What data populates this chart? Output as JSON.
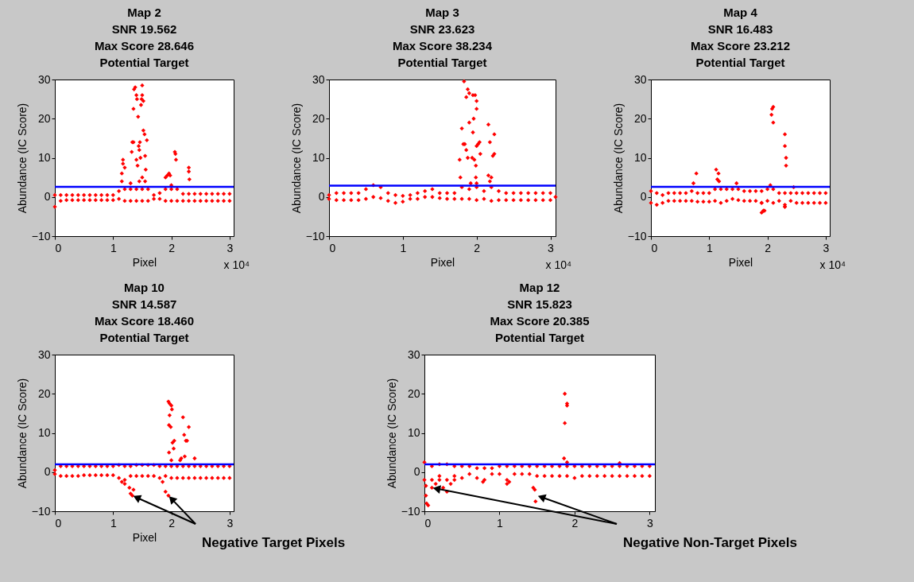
{
  "chart_data": [
    {
      "type": "scatter",
      "title": "Map 2\nSNR 19.562\nMax Score 28.646\nPotential Target",
      "xlabel": "Pixel",
      "ylabel": "Abundance (IC Score)",
      "color": "#ff0000",
      "marker": "diamond",
      "xlim": [
        0,
        3.07
      ],
      "ylim": [
        -10,
        30
      ],
      "xticks": [
        0,
        1,
        2,
        3
      ],
      "yticks": [
        -10,
        0,
        10,
        20,
        30
      ],
      "ref_lines": [
        {
          "axis": "y",
          "value": 2.6,
          "color": "#0000ff"
        }
      ],
      "annotations": [
        "x 10⁴"
      ],
      "x": [
        0,
        0,
        0.1,
        0.1,
        0.2,
        0.2,
        0.3,
        0.3,
        0.4,
        0.4,
        0.5,
        0.5,
        0.6,
        0.6,
        0.7,
        0.7,
        0.8,
        0.8,
        0.9,
        0.9,
        1,
        1,
        1.1,
        1.1,
        1.2,
        1.2,
        1.3,
        1.3,
        1.4,
        1.4,
        1.5,
        1.5,
        1.6,
        1.6,
        1.7,
        1.7,
        1.8,
        1.8,
        1.9,
        1.9,
        2,
        2,
        2.1,
        2.1,
        2.2,
        2.2,
        2.3,
        2.3,
        2.4,
        2.4,
        2.5,
        2.5,
        2.6,
        2.6,
        2.7,
        2.7,
        2.8,
        2.8,
        2.9,
        2.9,
        3,
        3,
        1.15,
        1.15,
        1.17,
        1.17,
        1.2,
        1.3,
        1.32,
        1.33,
        1.35,
        1.35,
        1.36,
        1.38,
        1.4,
        1.41,
        1.43,
        1.4,
        1.42,
        1.44,
        1.45,
        1.46,
        1.47,
        1.48,
        1.49,
        1.5,
        1.5,
        1.52,
        1.52,
        1.54,
        1.55,
        1.56,
        1.58,
        1.5,
        1.45,
        1.55,
        1.9,
        1.93,
        1.96,
        1.98,
        2,
        2.06,
        2.07,
        2.08,
        2.3,
        2.3,
        2.31
      ],
      "values": [
        0.5,
        -2.5,
        0.5,
        -1,
        0.5,
        -0.8,
        0.5,
        -0.8,
        0.5,
        -0.8,
        0.5,
        -0.8,
        0.5,
        -0.8,
        0.5,
        -0.8,
        0.5,
        -0.8,
        0.5,
        -0.8,
        0.5,
        -0.8,
        1.5,
        -0.5,
        2,
        -1,
        2,
        -1,
        2,
        -1,
        2,
        -1,
        2,
        -1,
        0.5,
        -0.5,
        1,
        -0.5,
        2,
        -1,
        2,
        -1,
        2,
        -1,
        0.8,
        -1,
        0.8,
        -1,
        0.8,
        -1,
        0.8,
        -1,
        0.8,
        -1,
        0.8,
        -1,
        0.8,
        -1,
        0.8,
        -1,
        0.8,
        -1,
        4,
        6,
        8.5,
        9.5,
        7.5,
        3.5,
        11.5,
        14,
        14,
        22.5,
        27.5,
        28,
        26,
        25,
        20.5,
        9.5,
        8,
        13,
        12,
        14,
        10,
        23.5,
        25,
        28.5,
        26,
        17,
        24.5,
        16,
        10.5,
        7,
        14.5,
        5,
        4,
        4,
        5,
        5.5,
        6,
        5.5,
        3,
        11.5,
        11,
        9.5,
        7.5,
        6.5,
        4.5
      ]
    },
    {
      "type": "scatter",
      "title": "Map 3\nSNR 23.623\nMax Score 38.234\nPotential Target",
      "xlabel": "Pixel",
      "ylabel": "Abundance (IC Score)",
      "color": "#ff0000",
      "marker": "diamond",
      "xlim": [
        0,
        3.07
      ],
      "ylim": [
        -10,
        30
      ],
      "xticks": [
        0,
        1,
        2,
        3
      ],
      "yticks": [
        -10,
        0,
        10,
        20,
        30
      ],
      "ref_lines": [
        {
          "axis": "y",
          "value": 2.9,
          "color": "#0000ff"
        }
      ],
      "annotations": [
        "x 10⁴"
      ],
      "x": [
        0,
        0,
        0.1,
        0.1,
        0.2,
        0.2,
        0.3,
        0.3,
        0.4,
        0.4,
        0.5,
        0.5,
        0.6,
        0.6,
        0.7,
        0.7,
        0.8,
        0.8,
        0.9,
        0.9,
        1,
        1,
        1.1,
        1.1,
        1.2,
        1.2,
        1.3,
        1.3,
        1.4,
        1.4,
        1.5,
        1.5,
        1.6,
        1.6,
        1.7,
        1.7,
        1.8,
        1.8,
        1.9,
        1.9,
        2,
        2,
        2.1,
        2.1,
        2.2,
        2.2,
        2.3,
        2.3,
        2.4,
        2.4,
        2.5,
        2.5,
        2.6,
        2.6,
        2.7,
        2.7,
        2.8,
        2.8,
        2.9,
        2.9,
        3,
        3,
        3.07,
        1.83,
        1.86,
        1.88,
        1.9,
        1.95,
        1.98,
        2,
        2,
        1.8,
        1.82,
        1.84,
        1.86,
        1.88,
        1.9,
        1.95,
        1.96,
        1.94,
        1.97,
        2,
        2.02,
        2.04,
        2.05,
        1.99,
        1.77,
        1.78,
        1.99,
        2,
        1.92,
        2.16,
        2.18,
        2.22,
        2.24,
        2.24,
        2.16,
        2.2,
        2.18
      ],
      "values": [
        0.5,
        -0.5,
        1,
        -0.8,
        1,
        -0.8,
        1,
        -0.8,
        1,
        -0.8,
        2,
        -0.5,
        3,
        0,
        2.5,
        -0.3,
        1,
        -1,
        0.5,
        -1.5,
        0.3,
        -1.2,
        0.5,
        -0.5,
        1,
        -0.5,
        1.5,
        0,
        2,
        0,
        1,
        -0.3,
        1,
        -0.5,
        1,
        -0.5,
        2.5,
        -0.5,
        2,
        -0.5,
        2.5,
        -0.8,
        1.5,
        -0.5,
        2.5,
        -1,
        1.5,
        -0.8,
        1,
        -0.8,
        1,
        -0.8,
        1,
        -0.8,
        1,
        -0.8,
        1,
        -0.8,
        1,
        -0.8,
        1,
        -0.8,
        0,
        29.5,
        25.5,
        27.5,
        26.5,
        26,
        26,
        24.5,
        22.5,
        17.5,
        13.5,
        13.5,
        12,
        10,
        19,
        16.5,
        20,
        10,
        9.5,
        13,
        13.5,
        14,
        11,
        8,
        9.5,
        5,
        5,
        3.5,
        3.5,
        18.5,
        14,
        10.5,
        11,
        16,
        5.5,
        5,
        4
      ]
    },
    {
      "type": "scatter",
      "title": "Map 4\nSNR 16.483\nMax Score 23.212\nPotential Target",
      "xlabel": "Pixel",
      "ylabel": "Abundance (IC Score)",
      "color": "#ff0000",
      "marker": "diamond",
      "xlim": [
        0,
        3.07
      ],
      "ylim": [
        -10,
        30
      ],
      "xticks": [
        0,
        1,
        2,
        3
      ],
      "yticks": [
        -10,
        0,
        10,
        20,
        30
      ],
      "ref_lines": [
        {
          "axis": "y",
          "value": 2.6,
          "color": "#0000ff"
        }
      ],
      "annotations": [
        "x 10⁴"
      ],
      "x": [
        0,
        0,
        0.1,
        0.1,
        0.2,
        0.2,
        0.3,
        0.3,
        0.4,
        0.4,
        0.5,
        0.5,
        0.6,
        0.6,
        0.7,
        0.7,
        0.8,
        0.8,
        0.9,
        0.9,
        1,
        1,
        1.1,
        1.1,
        1.2,
        1.2,
        1.3,
        1.3,
        1.4,
        1.4,
        1.5,
        1.5,
        1.6,
        1.6,
        1.7,
        1.7,
        1.8,
        1.8,
        1.9,
        1.9,
        2,
        2,
        2.1,
        2.1,
        2.2,
        2.2,
        2.3,
        2.3,
        2.4,
        2.4,
        2.5,
        2.5,
        2.6,
        2.6,
        2.7,
        2.7,
        2.8,
        2.8,
        2.9,
        2.9,
        3,
        3,
        0.73,
        0.78,
        1.12,
        1.14,
        1.16,
        1.17,
        1.47,
        2.05,
        2.07,
        2.08,
        2.1,
        2.1,
        2.3,
        2.3,
        2.32,
        2.32,
        2.45,
        1.9,
        1.9,
        1.93,
        1.95,
        2.3,
        2.3
      ],
      "values": [
        1.5,
        -1.5,
        1,
        -2,
        0.5,
        -1.5,
        1,
        -1,
        1,
        -1,
        1,
        -1,
        1,
        -1,
        1.5,
        -1,
        1,
        -1.2,
        1,
        -1.2,
        1,
        -1.2,
        2,
        -1,
        2,
        -1.5,
        2,
        -1,
        2,
        -0.5,
        2,
        -0.8,
        1.5,
        -1,
        1.5,
        -1,
        1.5,
        -1,
        1.5,
        -1.5,
        2,
        -1,
        2,
        -1.5,
        1,
        -1,
        1,
        -2.5,
        1,
        -1,
        1,
        -1.5,
        1,
        -1.5,
        1,
        -1.5,
        1,
        -1.5,
        1,
        -1.5,
        1,
        -1.5,
        3.5,
        6,
        7,
        4.5,
        6,
        4,
        3.5,
        3,
        21,
        22.5,
        23,
        19,
        16,
        13,
        10,
        8,
        2.5,
        -1.5,
        -4,
        -3.5,
        -3.5,
        -2,
        -2.5
      ]
    },
    {
      "type": "scatter",
      "title": "Map 10\nSNR 14.587\nMax Score 18.460\nPotential Target",
      "xlabel": "Pixel",
      "ylabel": "Abundance (IC Score)",
      "color": "#ff0000",
      "marker": "diamond",
      "xlim": [
        0,
        3.07
      ],
      "ylim": [
        -10,
        30
      ],
      "xticks": [
        0,
        1,
        2,
        3
      ],
      "yticks": [
        -10,
        0,
        10,
        20,
        30
      ],
      "ref_lines": [
        {
          "axis": "y",
          "value": 2,
          "color": "#0000ff"
        }
      ],
      "annotations": [
        {
          "text": "Negative Target Pixels",
          "x": 1.33,
          "y": -6
        }
      ],
      "x": [
        0,
        0,
        0.1,
        0.1,
        0.2,
        0.2,
        0.3,
        0.3,
        0.4,
        0.4,
        0.5,
        0.5,
        0.6,
        0.6,
        0.7,
        0.7,
        0.8,
        0.8,
        0.9,
        0.9,
        1,
        1,
        1.1,
        1.1,
        1.2,
        1.2,
        1.3,
        1.3,
        1.4,
        1.4,
        1.5,
        1.5,
        1.6,
        1.6,
        1.7,
        1.7,
        1.8,
        1.8,
        1.9,
        1.9,
        2,
        2,
        2.1,
        2.1,
        2.2,
        2.2,
        2.3,
        2.3,
        2.4,
        2.4,
        2.5,
        2.5,
        2.6,
        2.6,
        2.7,
        2.7,
        2.8,
        2.8,
        2.9,
        2.9,
        3,
        3,
        1.95,
        1.97,
        2,
        2.01,
        1.97,
        1.96,
        1.99,
        2.02,
        2.05,
        2.04,
        1.96,
        2,
        2.15,
        2.17,
        2.2,
        2.22,
        2.25,
        2.27,
        2.3,
        2.23,
        2.4,
        1.15,
        1.2,
        1.28,
        1.3,
        1.33,
        1.35,
        1.85,
        1.9,
        1.95
      ],
      "values": [
        0.5,
        -0.5,
        1.5,
        -1,
        1.5,
        -1,
        1.5,
        -1,
        1.5,
        -1,
        1.5,
        -0.8,
        1.5,
        -0.8,
        1.5,
        -0.8,
        1.5,
        -0.8,
        1.5,
        -0.8,
        1.5,
        -0.8,
        1.8,
        -1.5,
        1.5,
        -2,
        1.5,
        -1,
        1.8,
        -1,
        1.8,
        -1,
        1.8,
        -1,
        1.8,
        -1,
        1.5,
        -1.5,
        1.5,
        -1,
        1.5,
        -1.5,
        1.5,
        -1.5,
        1.5,
        -1.5,
        1.5,
        -1.5,
        1.5,
        -1.5,
        1.5,
        -1.5,
        1.5,
        -1.5,
        1.5,
        -1.5,
        1.5,
        -1.5,
        1.5,
        -1.5,
        1.5,
        -1.5,
        18,
        17.5,
        17,
        16,
        14.5,
        12,
        11.5,
        7.5,
        8,
        6,
        5,
        3,
        3,
        3.5,
        14,
        9.5,
        8,
        8,
        11.5,
        4,
        3.5,
        -2.5,
        -3,
        -4,
        -5.5,
        -6,
        -4.5,
        -2.5,
        -5,
        -6
      ]
    },
    {
      "type": "scatter",
      "title": "Map 12\nSNR 15.823\nMax Score 20.385\nPotential Target",
      "ylabel": "Abundance (IC Score)",
      "color": "#ff0000",
      "marker": "diamond",
      "xlim": [
        0,
        3.07
      ],
      "ylim": [
        -10,
        30
      ],
      "xticks": [
        0,
        1,
        2,
        3
      ],
      "yticks": [
        -10,
        0,
        10,
        20,
        30
      ],
      "ref_lines": [
        {
          "axis": "y",
          "value": 2,
          "color": "#0000ff"
        }
      ],
      "annotations": [
        {
          "text": "Negative Non-Target Pixels",
          "x": 0.1,
          "y": -4
        }
      ],
      "x": [
        0,
        0,
        0.1,
        0.1,
        0.2,
        0.2,
        0.3,
        0.3,
        0.4,
        0.4,
        0.5,
        0.5,
        0.6,
        0.6,
        0.7,
        0.7,
        0.8,
        0.8,
        0.9,
        0.9,
        1,
        1,
        1.1,
        1.1,
        1.2,
        1.2,
        1.3,
        1.3,
        1.4,
        1.4,
        1.5,
        1.5,
        1.6,
        1.6,
        1.7,
        1.7,
        1.8,
        1.8,
        1.9,
        1.9,
        2,
        2,
        2.1,
        2.1,
        2.2,
        2.2,
        2.3,
        2.3,
        2.4,
        2.4,
        2.5,
        2.5,
        2.6,
        2.6,
        2.7,
        2.7,
        2.8,
        2.8,
        2.9,
        2.9,
        3,
        3,
        1.87,
        1.9,
        1.9,
        1.87,
        1.86,
        1.9,
        2.6,
        0.02,
        0.03,
        0.05,
        0.02,
        0.1,
        0.15,
        0.2,
        0.25,
        0.3,
        0.35,
        0.4,
        0.78,
        1.1,
        1.13,
        1.45,
        1.47,
        1.48
      ],
      "values": [
        2.5,
        -2,
        1.5,
        -2,
        2,
        -1,
        2,
        -2,
        1.5,
        -1,
        1.5,
        -1.5,
        1.5,
        -0.5,
        1,
        -1.5,
        1,
        -2,
        1,
        -0.5,
        1.5,
        -0.5,
        1.5,
        -2,
        1.5,
        -0.5,
        1.5,
        -0.5,
        1.5,
        -0.5,
        1.5,
        -1,
        1.5,
        -1,
        1.5,
        -1,
        1.5,
        -1,
        1.5,
        -1,
        1.5,
        -1.5,
        1.5,
        -1,
        1.5,
        -1,
        1.5,
        -1,
        1.5,
        -1,
        1.5,
        -1,
        1.5,
        -1,
        1.5,
        -1,
        1.5,
        -1,
        1.5,
        -1,
        1.5,
        -1,
        20,
        17.5,
        17,
        12.5,
        3.5,
        2.5,
        2.3,
        -6,
        -8,
        -8.5,
        -3.5,
        -4,
        -3,
        -2,
        -4,
        -5,
        -3,
        -2,
        -2.5,
        -3,
        -2.5,
        -4,
        -4.5,
        -7.5
      ]
    }
  ]
}
